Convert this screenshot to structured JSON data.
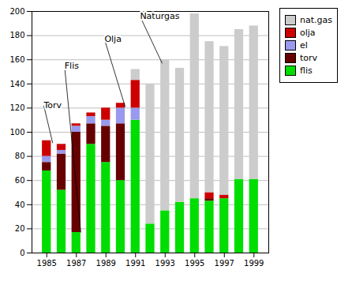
{
  "chart_data": {
    "type": "bar",
    "stacked": true,
    "x": [
      1985,
      1986,
      1987,
      1988,
      1989,
      1990,
      1991,
      1992,
      1993,
      1994,
      1995,
      1996,
      1997,
      1998,
      1999
    ],
    "series": [
      {
        "name": "flis",
        "color": "#00dd00",
        "values": [
          68,
          52,
          17,
          90,
          75,
          60,
          110,
          24,
          35,
          42,
          45,
          43,
          45,
          61,
          61
        ]
      },
      {
        "name": "torv",
        "color": "#660000",
        "values": [
          7,
          30,
          83,
          17,
          30,
          47,
          0,
          0,
          0,
          0,
          0,
          2,
          0,
          0,
          0
        ]
      },
      {
        "name": "el",
        "color": "#9999ee",
        "values": [
          5,
          3,
          5,
          6,
          5,
          13,
          10,
          0,
          0,
          0,
          0,
          0,
          0,
          0,
          0
        ]
      },
      {
        "name": "olja",
        "color": "#cc0000",
        "values": [
          13,
          5,
          2,
          3,
          10,
          4,
          23,
          0,
          0,
          0,
          0,
          5,
          3,
          0,
          0
        ]
      },
      {
        "name": "nat.gas",
        "color": "#cccccc",
        "values": [
          0,
          0,
          0,
          0,
          0,
          0,
          9,
          116,
          125,
          111,
          153,
          125,
          123,
          124,
          127
        ]
      }
    ],
    "xlim": [
      1984,
      2000
    ],
    "xticks": [
      1985,
      1987,
      1989,
      1991,
      1993,
      1995,
      1997,
      1999
    ],
    "ylim": [
      0,
      200
    ],
    "yticks": [
      0,
      20,
      40,
      60,
      80,
      100,
      120,
      140,
      160,
      180,
      200
    ],
    "grid": true,
    "legend": "right",
    "annotations": [
      {
        "text": "Torv",
        "x": 1985.4,
        "y": 91,
        "text_x": 1984.8,
        "text_y": 122
      },
      {
        "text": "Flis",
        "x": 1987.3,
        "y": 17,
        "text_x": 1986.2,
        "text_y": 155
      },
      {
        "text": "Olja",
        "x": 1990.3,
        "y": 121,
        "text_x": 1988.9,
        "text_y": 177
      },
      {
        "text": "Naturgas",
        "x": 1992.8,
        "y": 157,
        "text_x": 1991.3,
        "text_y": 196
      }
    ]
  }
}
